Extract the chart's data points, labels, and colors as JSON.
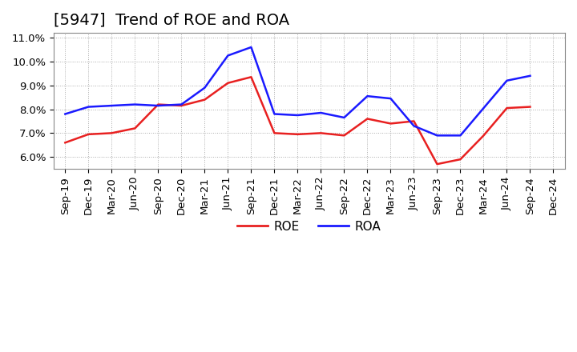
{
  "title": "[5947]  Trend of ROE and ROA",
  "x_labels": [
    "Sep-19",
    "Dec-19",
    "Mar-20",
    "Jun-20",
    "Sep-20",
    "Dec-20",
    "Mar-21",
    "Jun-21",
    "Sep-21",
    "Dec-21",
    "Mar-22",
    "Jun-22",
    "Sep-22",
    "Dec-22",
    "Mar-23",
    "Jun-23",
    "Sep-23",
    "Dec-23",
    "Mar-24",
    "Jun-24",
    "Sep-24",
    "Dec-24"
  ],
  "roe": [
    6.6,
    6.95,
    7.0,
    7.2,
    8.2,
    8.15,
    8.4,
    9.1,
    9.35,
    7.0,
    6.95,
    7.0,
    6.9,
    7.6,
    7.4,
    7.5,
    5.7,
    5.9,
    6.9,
    8.05,
    8.1,
    null
  ],
  "roa": [
    7.8,
    8.1,
    8.15,
    8.2,
    8.15,
    8.2,
    8.9,
    10.25,
    10.6,
    7.8,
    7.75,
    7.85,
    7.65,
    8.55,
    8.45,
    7.3,
    6.9,
    6.9,
    8.05,
    9.2,
    9.4,
    null
  ],
  "roe_color": "#e82020",
  "roa_color": "#1a1aff",
  "ylim": [
    5.5,
    11.2
  ],
  "yticks": [
    6.0,
    7.0,
    8.0,
    9.0,
    10.0,
    11.0
  ],
  "ytick_labels": [
    "6.0%",
    "7.0%",
    "8.0%",
    "9.0%",
    "10.0%",
    "11.0%"
  ],
  "background_color": "#ffffff",
  "plot_bg_color": "#ffffff",
  "grid_color": "#aaaaaa",
  "title_fontsize": 14,
  "legend_fontsize": 11,
  "tick_fontsize": 9.5
}
